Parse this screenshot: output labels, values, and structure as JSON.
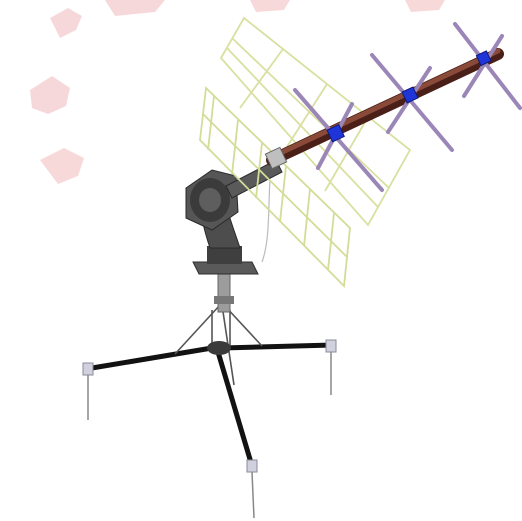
{
  "colors": {
    "background": "#ffffff",
    "watermark": "#f4c7c9",
    "reflector_grid": "#d9e0a0",
    "boom": "#7a3a2e",
    "elements": "#9b86b8",
    "hub": "#1a2fd0",
    "rotator": "#4a4a4a",
    "mast": "#9a9a9a",
    "tripod_legs": "#111111",
    "feet": "#c8c8d8"
  },
  "icons": {
    "antenna": "yagi-antenna-icon",
    "rotator": "rotator-icon",
    "tripod": "tripod-icon",
    "watermark": "watermark-icon"
  }
}
